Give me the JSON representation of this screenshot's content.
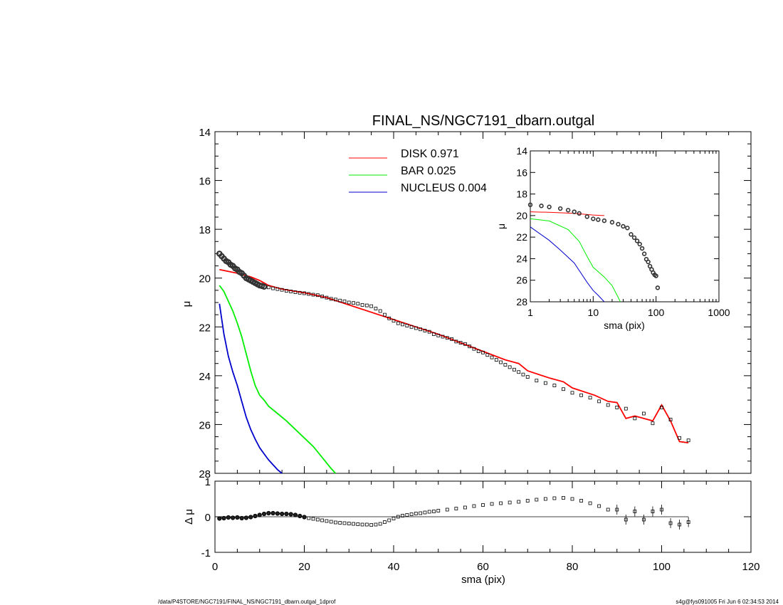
{
  "title": "FINAL_NS/NGC7191_dbarn.outgal",
  "footer": {
    "left": "/data/P4STORE/NGC7191/FINAL_NS/NGC7191_dbarn.outgal_1dprof",
    "right": "s4g@fys091005  Fri Jun  6 02:34:53 2014"
  },
  "colors": {
    "disk": "#ff0000",
    "bar": "#00ee00",
    "nucleus": "#0000cc",
    "data": "#000000"
  },
  "chart_data": [
    {
      "type": "scatter",
      "role": "main-profile",
      "xlabel": "",
      "ylabel": "μ",
      "xlim": [
        0,
        120
      ],
      "ylim": [
        28,
        14
      ],
      "y_inverted": true,
      "x_ticks": [
        "0",
        "20",
        "40",
        "60",
        "80",
        "100",
        "120"
      ],
      "y_ticks": [
        "14",
        "16",
        "18",
        "20",
        "22",
        "24",
        "26",
        "28"
      ],
      "legend_position": "top-center",
      "series": [
        {
          "name": "DISK",
          "value_label": "0.971",
          "color": "#ff0000",
          "x": [
            1,
            5,
            8,
            10,
            12,
            15,
            20,
            25,
            30,
            35,
            40,
            45,
            50,
            55,
            60,
            65,
            68,
            70,
            75,
            78,
            80,
            85,
            88,
            90,
            92,
            94,
            96,
            98,
            100,
            102,
            104,
            106
          ],
          "values": [
            19.65,
            19.8,
            19.95,
            20.1,
            20.3,
            20.45,
            20.6,
            20.8,
            21.1,
            21.4,
            21.7,
            22.0,
            22.3,
            22.65,
            23.0,
            23.35,
            23.5,
            23.8,
            24.1,
            24.25,
            24.5,
            24.8,
            25.05,
            25.1,
            25.75,
            25.65,
            25.75,
            25.85,
            25.2,
            25.85,
            26.7,
            26.75
          ]
        },
        {
          "name": "BAR",
          "value_label": "0.025",
          "color": "#00ee00",
          "x": [
            1,
            2,
            3,
            4,
            5,
            6,
            7,
            8,
            9,
            10,
            11,
            12,
            14,
            16,
            18,
            20,
            22,
            24,
            26,
            27
          ],
          "values": [
            20.3,
            20.55,
            20.95,
            21.35,
            21.85,
            22.4,
            23.1,
            23.8,
            24.4,
            24.8,
            25.0,
            25.25,
            25.55,
            25.85,
            26.2,
            26.55,
            26.9,
            27.35,
            27.8,
            28.0
          ]
        },
        {
          "name": "NUCLEUS",
          "value_label": "0.004",
          "color": "#0000cc",
          "x": [
            1,
            2,
            3,
            4,
            5,
            6,
            7,
            8,
            9,
            10,
            11,
            12,
            13,
            14,
            15
          ],
          "values": [
            21.05,
            22.3,
            23.2,
            23.85,
            24.4,
            25.05,
            25.7,
            26.2,
            26.6,
            26.95,
            27.2,
            27.45,
            27.65,
            27.85,
            28.0
          ]
        },
        {
          "name": "",
          "kind": "data-points",
          "x": [
            1,
            1.5,
            2,
            2.5,
            3,
            3.5,
            4,
            4.5,
            5,
            5.5,
            6,
            6.5,
            7,
            7.5,
            8,
            8.5,
            9,
            9.5,
            10,
            10.5,
            11,
            12,
            13,
            14,
            15,
            16,
            17,
            18,
            19,
            20,
            21,
            22,
            23,
            24,
            25,
            26,
            27,
            28,
            29,
            30,
            31,
            32,
            33,
            34,
            35,
            36,
            37,
            38,
            39,
            40,
            41,
            42,
            43,
            44,
            45,
            46,
            47,
            48,
            49,
            50,
            51,
            52,
            53,
            54,
            55,
            56,
            57,
            58,
            59,
            60,
            61,
            62,
            63,
            64,
            65,
            66,
            67,
            68,
            69,
            70,
            72,
            74,
            76,
            78,
            80,
            82,
            84,
            86,
            88,
            90,
            92,
            94,
            96,
            98,
            100,
            102,
            104,
            106
          ],
          "values": [
            19.0,
            19.1,
            19.2,
            19.3,
            19.35,
            19.45,
            19.5,
            19.6,
            19.65,
            19.75,
            19.8,
            19.9,
            20.0,
            20.05,
            20.1,
            20.15,
            20.2,
            20.25,
            20.3,
            20.32,
            20.35,
            20.38,
            20.42,
            20.45,
            20.48,
            20.52,
            20.55,
            20.58,
            20.6,
            20.62,
            20.65,
            20.68,
            20.7,
            20.75,
            20.8,
            20.85,
            20.88,
            20.92,
            20.95,
            21.0,
            21.02,
            21.05,
            21.1,
            21.12,
            21.15,
            21.25,
            21.35,
            21.5,
            21.65,
            21.75,
            21.85,
            21.9,
            21.95,
            22.0,
            22.05,
            22.1,
            22.15,
            22.2,
            22.3,
            22.35,
            22.4,
            22.45,
            22.5,
            22.6,
            22.65,
            22.7,
            22.8,
            22.9,
            23.0,
            23.05,
            23.15,
            23.25,
            23.35,
            23.45,
            23.55,
            23.65,
            23.75,
            23.85,
            23.95,
            24.05,
            24.2,
            24.3,
            24.4,
            24.55,
            24.7,
            24.8,
            24.9,
            25.05,
            25.2,
            25.3,
            25.35,
            25.75,
            25.55,
            25.95,
            25.3,
            25.8,
            26.55,
            26.65
          ]
        }
      ]
    },
    {
      "type": "line",
      "role": "inset-log",
      "xlabel": "sma (pix)",
      "ylabel": "μ",
      "x_scale": "log",
      "xlim": [
        1,
        1000
      ],
      "ylim": [
        28,
        14
      ],
      "y_inverted": true,
      "x_ticks": [
        "1",
        "10",
        "100",
        "1000"
      ],
      "y_ticks": [
        "14",
        "16",
        "18",
        "20",
        "22",
        "24",
        "26",
        "28"
      ],
      "series": [
        {
          "name": "DISK",
          "color": "#ff0000",
          "x": [
            1,
            2,
            5,
            10,
            15
          ],
          "values": [
            19.65,
            19.7,
            19.8,
            19.95,
            20.0
          ]
        },
        {
          "name": "BAR",
          "color": "#00ee00",
          "x": [
            1,
            2,
            4,
            6,
            8,
            10,
            12,
            15,
            20,
            25,
            27
          ],
          "values": [
            20.3,
            20.5,
            21.3,
            22.4,
            23.8,
            24.8,
            25.2,
            25.7,
            26.5,
            27.6,
            28.0
          ]
        },
        {
          "name": "NUCLEUS",
          "color": "#0000cc",
          "x": [
            1,
            2,
            3,
            5,
            8,
            10,
            12,
            15
          ],
          "values": [
            21.05,
            22.3,
            23.2,
            24.4,
            26.2,
            26.95,
            27.4,
            28.0
          ]
        },
        {
          "name": "",
          "kind": "data-points",
          "x": [
            1,
            1.5,
            2,
            3,
            4,
            5,
            6,
            8,
            10,
            12,
            15,
            20,
            25,
            30,
            35,
            40,
            45,
            50,
            55,
            60,
            65,
            70,
            75,
            80,
            85,
            90,
            95,
            100,
            106
          ],
          "values": [
            19.0,
            19.1,
            19.2,
            19.35,
            19.5,
            19.65,
            19.8,
            20.1,
            20.3,
            20.38,
            20.48,
            20.62,
            20.8,
            21.0,
            21.15,
            21.75,
            22.05,
            22.35,
            22.65,
            23.05,
            23.55,
            24.05,
            24.3,
            24.7,
            25.0,
            25.3,
            25.5,
            25.6,
            26.7
          ]
        }
      ]
    },
    {
      "type": "scatter",
      "role": "residuals",
      "xlabel": "sma (pix)",
      "ylabel": "Δ μ",
      "xlim": [
        0,
        120
      ],
      "ylim": [
        -1,
        1
      ],
      "x_ticks": [
        "0",
        "20",
        "40",
        "60",
        "80",
        "100",
        "120"
      ],
      "y_ticks": [
        "-1",
        "0",
        "1"
      ],
      "x": [
        1,
        2,
        3,
        4,
        5,
        6,
        7,
        8,
        9,
        10,
        11,
        12,
        13,
        14,
        15,
        16,
        17,
        18,
        19,
        20,
        21,
        22,
        23,
        24,
        25,
        26,
        27,
        28,
        29,
        30,
        31,
        32,
        33,
        34,
        35,
        36,
        37,
        38,
        39,
        40,
        41,
        42,
        43,
        44,
        45,
        46,
        47,
        48,
        49,
        50,
        52,
        54,
        56,
        58,
        60,
        62,
        64,
        66,
        68,
        70,
        72,
        74,
        76,
        78,
        80,
        82,
        84,
        86,
        88,
        90,
        92,
        94,
        96,
        98,
        100,
        102,
        104,
        106
      ],
      "values": [
        -0.05,
        -0.04,
        -0.02,
        -0.03,
        -0.02,
        -0.04,
        -0.03,
        -0.01,
        0.02,
        0.05,
        0.08,
        0.1,
        0.1,
        0.09,
        0.08,
        0.08,
        0.07,
        0.05,
        0.02,
        -0.01,
        -0.04,
        -0.06,
        -0.08,
        -0.1,
        -0.12,
        -0.14,
        -0.16,
        -0.17,
        -0.18,
        -0.19,
        -0.2,
        -0.21,
        -0.22,
        -0.22,
        -0.23,
        -0.22,
        -0.2,
        -0.15,
        -0.1,
        -0.05,
        0.0,
        0.03,
        0.05,
        0.07,
        0.09,
        0.1,
        0.12,
        0.14,
        0.15,
        0.17,
        0.2,
        0.23,
        0.26,
        0.3,
        0.33,
        0.36,
        0.38,
        0.4,
        0.42,
        0.45,
        0.48,
        0.5,
        0.52,
        0.53,
        0.5,
        0.45,
        0.38,
        0.3,
        0.2,
        0.2,
        -0.08,
        0.15,
        -0.08,
        0.15,
        0.2,
        -0.18,
        -0.22,
        -0.15
      ]
    }
  ]
}
